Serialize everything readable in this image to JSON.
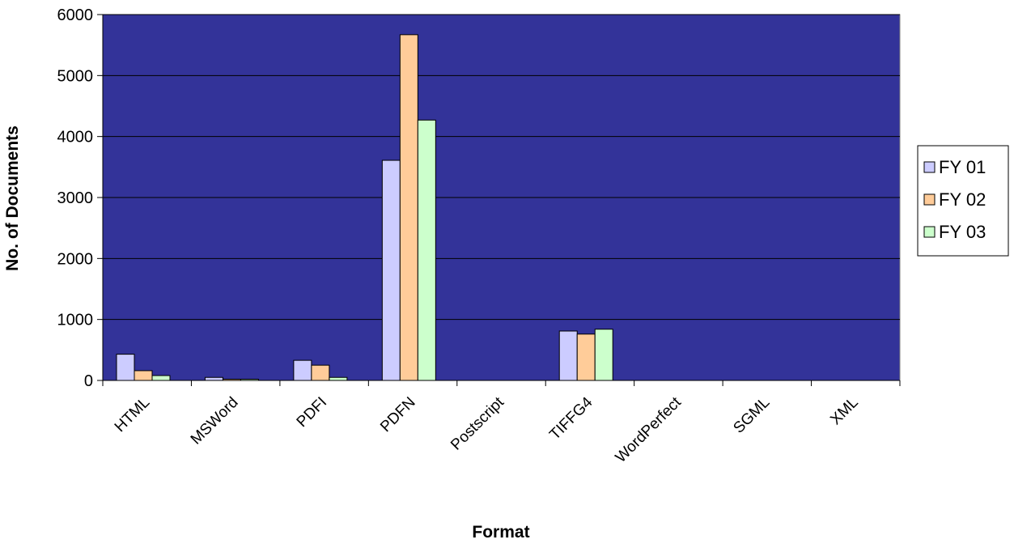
{
  "chart_data": {
    "type": "bar",
    "xlabel": "Format",
    "ylabel": "No. of Documents",
    "ylim": [
      0,
      6000
    ],
    "yticks": [
      0,
      1000,
      2000,
      3000,
      4000,
      5000,
      6000
    ],
    "grid": true,
    "legend_position": "right",
    "plot_background": "#333399",
    "categories": [
      "HTML",
      "MSWord",
      "PDFI",
      "PDFN",
      "Postscript",
      "TIFFG4",
      "WordPerfect",
      "SGML",
      "XML"
    ],
    "series": [
      {
        "name": "FY 01",
        "color": "#CCCCFF",
        "values": [
          430,
          50,
          330,
          3610,
          0,
          810,
          0,
          0,
          0
        ]
      },
      {
        "name": "FY 02",
        "color": "#FFCC99",
        "values": [
          160,
          20,
          250,
          5670,
          0,
          760,
          0,
          0,
          0
        ]
      },
      {
        "name": "FY 03",
        "color": "#CCFFCC",
        "values": [
          80,
          20,
          50,
          4270,
          0,
          840,
          0,
          0,
          0
        ]
      }
    ]
  }
}
